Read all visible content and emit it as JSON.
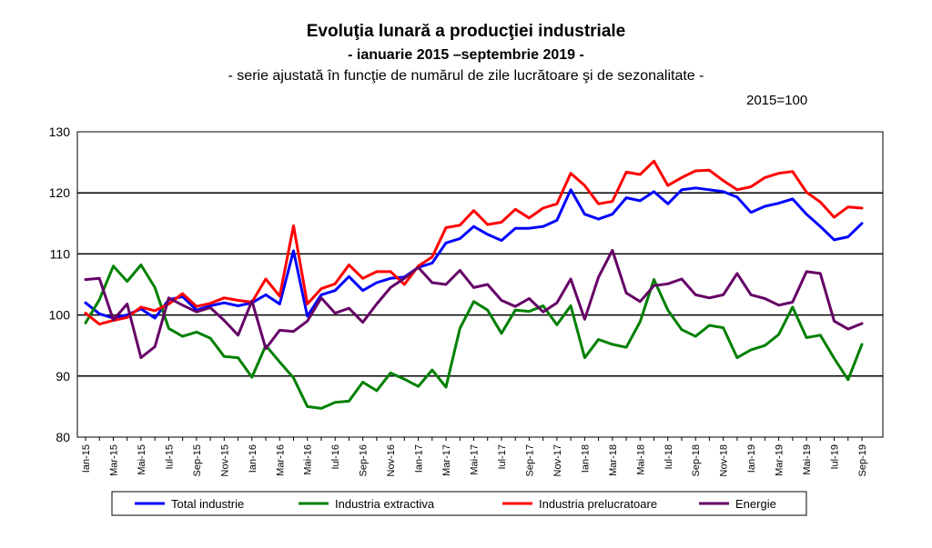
{
  "chart_data": {
    "type": "line",
    "title": "Evoluţia lunară a producţiei industriale",
    "period": "- ianuarie 2015 –septembrie 2019 -",
    "subtitle": "- serie ajustată în funcţie de numărul de zile lucrătoare şi de sezonalitate -",
    "base_note": "2015=100",
    "ylim": [
      80,
      130
    ],
    "yticks": [
      80,
      90,
      100,
      110,
      120,
      130
    ],
    "grid": "horizontal",
    "legend_position": "bottom",
    "x": [
      "Ian-15",
      "Feb-15",
      "Mar-15",
      "Apr-15",
      "Mai-15",
      "Iun-15",
      "Iul-15",
      "Aug-15",
      "Sep-15",
      "Oct-15",
      "Nov-15",
      "Dec-15",
      "Ian-16",
      "Feb-16",
      "Mar-16",
      "Apr-16",
      "Mai-16",
      "Iun-16",
      "Iul-16",
      "Aug-16",
      "Sep-16",
      "Oct-16",
      "Nov-16",
      "Dec-16",
      "Ian-17",
      "Feb-17",
      "Mar-17",
      "Apr-17",
      "Mai-17",
      "Iun-17",
      "Iul-17",
      "Aug-17",
      "Sep-17",
      "Oct-17",
      "Nov-17",
      "Dec-17",
      "Ian-18",
      "Feb-18",
      "Mar-18",
      "Apr-18",
      "Mai-18",
      "Iun-18",
      "Iul-18",
      "Aug-18",
      "Sep-18",
      "Oct-18",
      "Nov-18",
      "Dec-18",
      "Ian-19",
      "Feb-19",
      "Mar-19",
      "Apr-19",
      "Mai-19",
      "Iun-19",
      "Iul-19",
      "Aug-19",
      "Sep-19"
    ],
    "tick_labels": [
      "Ian-15",
      "Mar-15",
      "Mai-15",
      "Iul-15",
      "Sep-15",
      "Nov-15",
      "Ian-16",
      "Mar-16",
      "Mai-16",
      "Iul-16",
      "Sep-16",
      "Nov-16",
      "Ian-17",
      "Mar-17",
      "Mai-17",
      "Iul-17",
      "Sep-17",
      "Nov-17",
      "Ian-18",
      "Mar-18",
      "Mai-18",
      "Iul-18",
      "Sep-18",
      "Nov-18",
      "Ian-19",
      "Mar-19",
      "Mai-19",
      "Iul-19",
      "Sep-19"
    ],
    "series": [
      {
        "name": "Total industrie",
        "color": "#0000ff",
        "values": [
          102.0,
          100.2,
          99.5,
          100.0,
          101.0,
          99.5,
          102.5,
          103.0,
          100.8,
          101.5,
          102.0,
          101.5,
          102.0,
          103.3,
          101.8,
          110.5,
          99.8,
          103.3,
          104.0,
          106.3,
          104.0,
          105.3,
          106.0,
          106.2,
          107.8,
          108.5,
          111.8,
          112.5,
          114.5,
          113.2,
          112.2,
          114.2,
          114.2,
          114.5,
          115.5,
          120.5,
          116.5,
          115.7,
          116.5,
          119.2,
          118.7,
          120.2,
          118.2,
          120.5,
          120.8,
          120.5,
          120.2,
          119.3,
          116.8,
          117.8,
          118.3,
          119.0,
          116.5,
          114.5,
          112.3,
          112.8,
          115.0
        ]
      },
      {
        "name": "Industria extractiva",
        "color": "#008000",
        "values": [
          98.7,
          102.5,
          108.0,
          105.5,
          108.2,
          104.5,
          97.8,
          96.5,
          97.2,
          96.2,
          93.2,
          93.0,
          89.8,
          95.0,
          92.3,
          89.7,
          85.0,
          84.7,
          85.7,
          85.9,
          89.0,
          87.6,
          90.5,
          89.5,
          88.3,
          91.0,
          88.2,
          97.8,
          102.2,
          100.8,
          97.0,
          100.8,
          100.6,
          101.5,
          98.4,
          101.5,
          93.0,
          96.0,
          95.2,
          94.7,
          98.9,
          105.8,
          100.8,
          97.6,
          96.5,
          98.3,
          97.9,
          93.0,
          94.3,
          95.0,
          96.8,
          101.3,
          96.3,
          96.7,
          92.9,
          89.4,
          95.2
        ]
      },
      {
        "name": "Industria prelucratoare",
        "color": "#ff0000",
        "values": [
          100.3,
          98.5,
          99.1,
          99.6,
          101.3,
          100.7,
          101.8,
          103.5,
          101.4,
          101.9,
          102.8,
          102.4,
          102.1,
          105.9,
          103.1,
          114.6,
          101.8,
          104.3,
          105.1,
          108.2,
          106.0,
          107.1,
          107.1,
          105.0,
          108.0,
          109.5,
          114.3,
          114.7,
          117.1,
          114.8,
          115.2,
          117.3,
          115.9,
          117.5,
          118.2,
          123.2,
          121.2,
          118.2,
          118.6,
          123.4,
          123.0,
          125.2,
          121.2,
          122.5,
          123.6,
          123.7,
          122.0,
          120.5,
          121.0,
          122.5,
          123.2,
          123.5,
          120.1,
          118.5,
          116.0,
          117.7,
          117.5
        ]
      },
      {
        "name": "Energie",
        "color": "#660066",
        "values": [
          105.8,
          106.0,
          99.2,
          101.8,
          93.0,
          94.8,
          102.8,
          101.6,
          100.5,
          101.2,
          99.1,
          96.7,
          102.3,
          94.5,
          97.5,
          97.3,
          99.0,
          102.8,
          100.3,
          101.1,
          98.8,
          101.8,
          104.5,
          106.0,
          107.8,
          105.3,
          105.0,
          107.3,
          104.5,
          105.0,
          102.4,
          101.4,
          102.7,
          100.5,
          102.0,
          105.9,
          99.3,
          106.2,
          110.6,
          103.6,
          102.2,
          104.8,
          105.1,
          105.9,
          103.3,
          102.8,
          103.3,
          106.8,
          103.3,
          102.7,
          101.6,
          102.1,
          107.1,
          106.8,
          99.0,
          97.7,
          98.6
        ]
      }
    ]
  }
}
